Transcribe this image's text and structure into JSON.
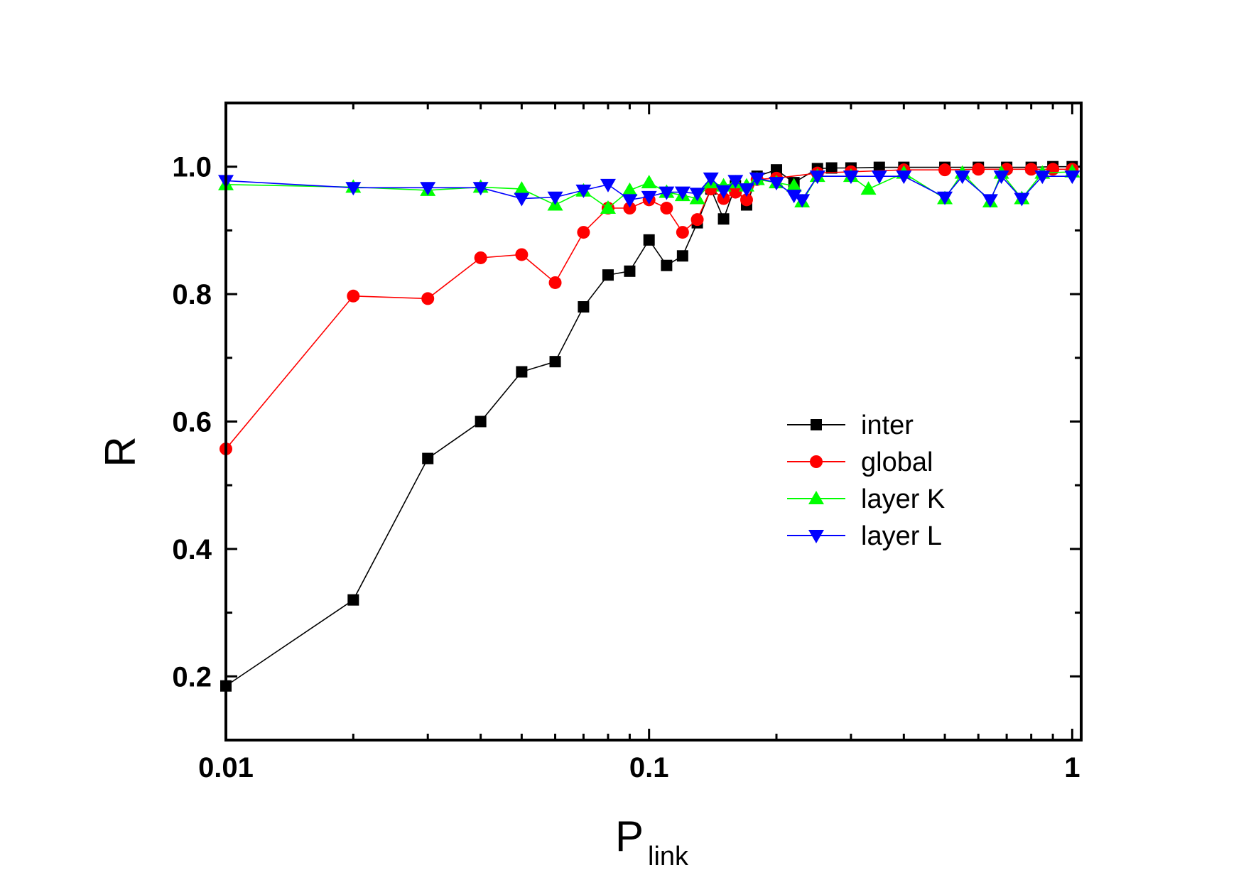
{
  "chart_data": {
    "type": "line",
    "title": "",
    "xlabel": "P",
    "xlabel_subscript": "link",
    "ylabel": "R",
    "xscale": "log",
    "xlim": [
      0.01,
      1.05
    ],
    "ylim": [
      0.1,
      1.1
    ],
    "xticks": [
      {
        "value": 0.01,
        "label": "0.01"
      },
      {
        "value": 0.1,
        "label": "0.1"
      },
      {
        "value": 1,
        "label": "1"
      }
    ],
    "yticks": [
      {
        "value": 0.2,
        "label": "0.2"
      },
      {
        "value": 0.4,
        "label": "0.4"
      },
      {
        "value": 0.6,
        "label": "0.6"
      },
      {
        "value": 0.8,
        "label": "0.8"
      },
      {
        "value": 1.0,
        "label": "1.0"
      }
    ],
    "legend_position": "center-right",
    "series": [
      {
        "name": "inter",
        "color": "#000000",
        "marker": "square",
        "points": [
          [
            0.01,
            0.185
          ],
          [
            0.02,
            0.32
          ],
          [
            0.03,
            0.542
          ],
          [
            0.04,
            0.6
          ],
          [
            0.05,
            0.678
          ],
          [
            0.06,
            0.694
          ],
          [
            0.07,
            0.78
          ],
          [
            0.08,
            0.83
          ],
          [
            0.09,
            0.836
          ],
          [
            0.1,
            0.885
          ],
          [
            0.11,
            0.845
          ],
          [
            0.12,
            0.86
          ],
          [
            0.13,
            0.912
          ],
          [
            0.14,
            0.965
          ],
          [
            0.15,
            0.918
          ],
          [
            0.16,
            0.97
          ],
          [
            0.17,
            0.94
          ],
          [
            0.18,
            0.985
          ],
          [
            0.2,
            0.995
          ],
          [
            0.22,
            0.975
          ],
          [
            0.25,
            0.997
          ],
          [
            0.27,
            0.998
          ],
          [
            0.3,
            0.998
          ],
          [
            0.35,
            0.999
          ],
          [
            0.4,
            0.999
          ],
          [
            0.5,
            0.999
          ],
          [
            0.6,
            0.999
          ],
          [
            0.7,
            0.999
          ],
          [
            0.8,
            0.999
          ],
          [
            0.9,
            1.0
          ],
          [
            1.0,
            1.0
          ]
        ]
      },
      {
        "name": "global",
        "color": "#ff0000",
        "marker": "circle",
        "points": [
          [
            0.01,
            0.557
          ],
          [
            0.02,
            0.797
          ],
          [
            0.03,
            0.793
          ],
          [
            0.04,
            0.857
          ],
          [
            0.05,
            0.862
          ],
          [
            0.06,
            0.818
          ],
          [
            0.07,
            0.897
          ],
          [
            0.08,
            0.935
          ],
          [
            0.09,
            0.935
          ],
          [
            0.1,
            0.948
          ],
          [
            0.11,
            0.935
          ],
          [
            0.12,
            0.897
          ],
          [
            0.13,
            0.917
          ],
          [
            0.14,
            0.965
          ],
          [
            0.15,
            0.95
          ],
          [
            0.16,
            0.96
          ],
          [
            0.17,
            0.948
          ],
          [
            0.18,
            0.98
          ],
          [
            0.2,
            0.982
          ],
          [
            0.25,
            0.99
          ],
          [
            0.3,
            0.992
          ],
          [
            0.4,
            0.995
          ],
          [
            0.5,
            0.995
          ],
          [
            0.6,
            0.996
          ],
          [
            0.7,
            0.996
          ],
          [
            0.8,
            0.996
          ],
          [
            0.9,
            0.996
          ],
          [
            1.0,
            0.996
          ]
        ]
      },
      {
        "name": "layer K",
        "color": "#00ff00",
        "marker": "triangle-up",
        "points": [
          [
            0.01,
            0.972
          ],
          [
            0.02,
            0.968
          ],
          [
            0.03,
            0.963
          ],
          [
            0.04,
            0.968
          ],
          [
            0.05,
            0.965
          ],
          [
            0.06,
            0.94
          ],
          [
            0.07,
            0.962
          ],
          [
            0.08,
            0.935
          ],
          [
            0.09,
            0.963
          ],
          [
            0.1,
            0.975
          ],
          [
            0.11,
            0.96
          ],
          [
            0.12,
            0.955
          ],
          [
            0.13,
            0.95
          ],
          [
            0.14,
            0.975
          ],
          [
            0.15,
            0.97
          ],
          [
            0.16,
            0.975
          ],
          [
            0.17,
            0.97
          ],
          [
            0.18,
            0.98
          ],
          [
            0.2,
            0.975
          ],
          [
            0.22,
            0.97
          ],
          [
            0.23,
            0.945
          ],
          [
            0.25,
            0.985
          ],
          [
            0.3,
            0.985
          ],
          [
            0.33,
            0.965
          ],
          [
            0.4,
            0.99
          ],
          [
            0.5,
            0.95
          ],
          [
            0.55,
            0.99
          ],
          [
            0.64,
            0.945
          ],
          [
            0.68,
            0.99
          ],
          [
            0.76,
            0.95
          ],
          [
            0.85,
            0.99
          ],
          [
            1.0,
            0.992
          ]
        ]
      },
      {
        "name": "layer L",
        "color": "#0000ff",
        "marker": "triangle-down",
        "points": [
          [
            0.01,
            0.978
          ],
          [
            0.02,
            0.967
          ],
          [
            0.03,
            0.967
          ],
          [
            0.04,
            0.967
          ],
          [
            0.05,
            0.95
          ],
          [
            0.06,
            0.952
          ],
          [
            0.07,
            0.963
          ],
          [
            0.08,
            0.972
          ],
          [
            0.09,
            0.948
          ],
          [
            0.1,
            0.953
          ],
          [
            0.11,
            0.96
          ],
          [
            0.12,
            0.96
          ],
          [
            0.13,
            0.958
          ],
          [
            0.14,
            0.982
          ],
          [
            0.15,
            0.962
          ],
          [
            0.16,
            0.978
          ],
          [
            0.17,
            0.965
          ],
          [
            0.18,
            0.982
          ],
          [
            0.2,
            0.975
          ],
          [
            0.22,
            0.955
          ],
          [
            0.23,
            0.948
          ],
          [
            0.25,
            0.985
          ],
          [
            0.3,
            0.985
          ],
          [
            0.35,
            0.985
          ],
          [
            0.4,
            0.985
          ],
          [
            0.5,
            0.952
          ],
          [
            0.55,
            0.985
          ],
          [
            0.64,
            0.948
          ],
          [
            0.68,
            0.985
          ],
          [
            0.76,
            0.95
          ],
          [
            0.85,
            0.985
          ],
          [
            1.0,
            0.985
          ]
        ]
      }
    ]
  }
}
